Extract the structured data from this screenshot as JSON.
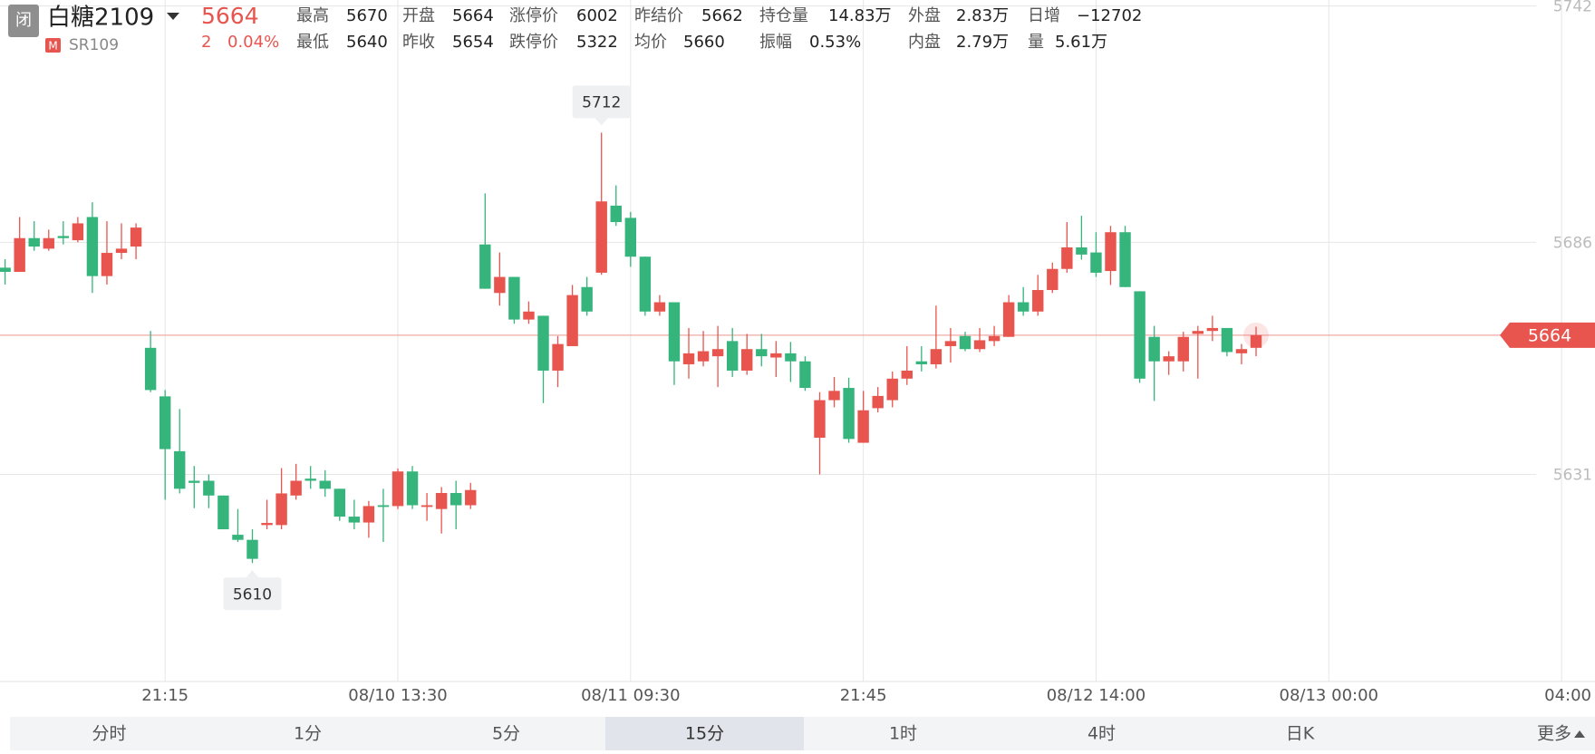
{
  "header": {
    "status": "闭",
    "name": "白糖2109",
    "price": "5664",
    "change": "2",
    "change_pct": "0.04%",
    "badge": "M",
    "code": "SR109",
    "stats": [
      {
        "label": "最高",
        "value": "5670"
      },
      {
        "label": "开盘",
        "value": "5664"
      },
      {
        "label": "涨停价",
        "value": "6002"
      },
      {
        "label": "昨结价",
        "value": "5662"
      },
      {
        "label": "持仓量",
        "value": "14.83万"
      },
      {
        "label": "外盘",
        "value": "2.83万"
      },
      {
        "label": "日增",
        "value": "−12702"
      },
      {
        "label": "最低",
        "value": "5640"
      },
      {
        "label": "昨收",
        "value": "5654"
      },
      {
        "label": "跌停价",
        "value": "5322"
      },
      {
        "label": "均价",
        "value": "5660"
      },
      {
        "label": "振幅",
        "value": "0.53%"
      },
      {
        "label": "内盘",
        "value": "2.79万"
      },
      {
        "label": "量",
        "value": "5.61万"
      }
    ]
  },
  "chart_data": {
    "type": "candlestick",
    "up_color": "#e8554e",
    "down_color": "#35b47b",
    "grid": true,
    "open": [
      5680,
      5679,
      5687,
      5684.5,
      5687.5,
      5686.5,
      5692,
      5678,
      5683.5,
      5685,
      5661,
      5649.5,
      5636.5,
      5629.5,
      5629.5,
      5626,
      5616.7,
      5615.5,
      5619,
      5619,
      5626,
      5630,
      5629.5,
      5627.6,
      5621,
      5619.6,
      5623.7,
      5623.5,
      5631.7,
      5623.3,
      5622.8,
      5626.6,
      5623.7,
      5685.5,
      5674,
      5677.8,
      5667.7,
      5668.6,
      5655.6,
      5661.4,
      5675.4,
      5678.8,
      5694.7,
      5691.8,
      5682.6,
      5669.6,
      5671.8,
      5657.1,
      5657.8,
      5659,
      5662.6,
      5655.6,
      5660.7,
      5658.7,
      5659.7,
      5657.8,
      5639.7,
      5648.6,
      5651.5,
      5638.5,
      5646.7,
      5648.6,
      5653.7,
      5657.8,
      5657.1,
      5661.4,
      5663.8,
      5660.7,
      5662.6,
      5663.6,
      5671.8,
      5669.6,
      5674.7,
      5679.7,
      5684.8,
      5683.6,
      5679.2,
      5688.4,
      5674.4,
      5663.6,
      5657.8,
      5657.8,
      5664.3,
      5665,
      5665.7,
      5659.7,
      5661
    ],
    "high": [
      5682,
      5692,
      5691,
      5689,
      5691,
      5692,
      5695.5,
      5691,
      5690.5,
      5690.5,
      5665,
      5651,
      5646.5,
      5633,
      5631,
      5626,
      5622.8,
      5618,
      5625,
      5632.5,
      5633.5,
      5633,
      5632,
      5627.6,
      5625,
      5624.7,
      5627.6,
      5632.4,
      5633,
      5626.6,
      5628,
      5629.5,
      5629,
      5697.6,
      5683.6,
      5677.8,
      5672,
      5668.6,
      5663.8,
      5675.9,
      5677.8,
      5712,
      5699.5,
      5693.2,
      5682.6,
      5673.5,
      5671.8,
      5665.7,
      5665,
      5666.2,
      5665.7,
      5664.3,
      5664.3,
      5662.6,
      5662.4,
      5659,
      5650.5,
      5654.1,
      5653.9,
      5650.8,
      5651.7,
      5655.4,
      5661.4,
      5661.4,
      5671,
      5665.7,
      5664.8,
      5665.7,
      5666.2,
      5673.5,
      5675.4,
      5678.3,
      5681.2,
      5690.8,
      5692.3,
      5688.4,
      5689.9,
      5689.9,
      5674.4,
      5666.2,
      5660.2,
      5664.8,
      5666.2,
      5668.6,
      5665.7,
      5661.9,
      5666
    ],
    "low": [
      5676,
      5679,
      5684,
      5684,
      5685.5,
      5686,
      5674,
      5676,
      5682,
      5682,
      5650.5,
      5625,
      5626.5,
      5623,
      5623,
      5618,
      5615,
      5610,
      5618,
      5618,
      5625,
      5627.6,
      5625.7,
      5620,
      5618,
      5616,
      5615,
      5622.8,
      5622.8,
      5620,
      5617,
      5618,
      5622.8,
      5675,
      5671,
      5666.7,
      5666.7,
      5647.9,
      5651.7,
      5661.4,
      5668.6,
      5678.3,
      5689.9,
      5680.2,
      5668.6,
      5668.6,
      5652.2,
      5653.7,
      5656.6,
      5651.7,
      5654.1,
      5654.6,
      5656.6,
      5654.1,
      5652.9,
      5650.8,
      5631,
      5646.9,
      5638.5,
      5638.5,
      5645.7,
      5646.9,
      5652.2,
      5655.4,
      5656.1,
      5657.5,
      5660.2,
      5660,
      5661.4,
      5663.6,
      5668.6,
      5668.6,
      5674,
      5678.8,
      5681.9,
      5677.8,
      5675.9,
      5675.4,
      5652.7,
      5648.4,
      5654.6,
      5655.4,
      5653.7,
      5662.6,
      5659,
      5657.1,
      5659
    ],
    "close": [
      5679,
      5687,
      5685,
      5687,
      5687,
      5690.5,
      5678,
      5683.5,
      5684.5,
      5689.5,
      5651,
      5637,
      5627.6,
      5629,
      5626,
      5618,
      5615.5,
      5611,
      5619.5,
      5626.5,
      5629.5,
      5629.5,
      5627.6,
      5621,
      5619.6,
      5623.5,
      5623.3,
      5631.7,
      5623.7,
      5623.7,
      5626.6,
      5623.7,
      5627.3,
      5675,
      5677.8,
      5667.7,
      5669.6,
      5655.6,
      5661.9,
      5673.5,
      5669.6,
      5695.7,
      5690.8,
      5682.6,
      5669.6,
      5671.8,
      5657.8,
      5659.7,
      5660.2,
      5660.7,
      5655.6,
      5660.7,
      5659,
      5659.7,
      5657.8,
      5651.5,
      5648.6,
      5650.8,
      5639.4,
      5646.2,
      5649.6,
      5653.7,
      5655.6,
      5657.1,
      5660.7,
      5662.6,
      5660.7,
      5662.8,
      5663.8,
      5671.8,
      5669.6,
      5674.7,
      5679.7,
      5684.8,
      5683.1,
      5678.8,
      5688.4,
      5675.4,
      5653.7,
      5657.8,
      5659,
      5663.6,
      5665,
      5665.7,
      5660,
      5660.7,
      5664
    ],
    "high_label": 5712,
    "low_label": 5610,
    "last_price": 5664,
    "ylim": [
      5583,
      5743
    ],
    "yticks": [
      5742,
      5686,
      5631
    ],
    "xlim": [
      -0.35,
      109.3
    ],
    "xticks": [
      {
        "value": 11,
        "label": "21:15"
      },
      {
        "value": 27,
        "label": "08/10 13:30"
      },
      {
        "value": 43,
        "label": "08/11 09:30"
      },
      {
        "value": 59,
        "label": "21:45"
      },
      {
        "value": 75,
        "label": "08/12 14:00"
      },
      {
        "value": 91,
        "label": "08/13 00:00"
      },
      {
        "value": 107,
        "label": "04:00"
      }
    ]
  },
  "tabs": [
    "分时",
    "1分",
    "5分",
    "15分",
    "1时",
    "4时",
    "日K",
    "更多"
  ],
  "selected_tab": "15分"
}
